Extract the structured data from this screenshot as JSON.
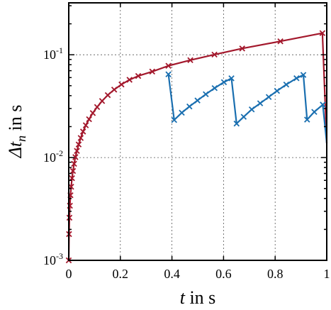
{
  "chart_data": {
    "type": "line",
    "title": "",
    "xlabel": {
      "var": "t",
      "suffix": " in s"
    },
    "ylabel": {
      "var": "Δt",
      "sub": "n",
      "suffix": " in s"
    },
    "xlim": [
      0,
      1
    ],
    "ylim": [
      0.001,
      0.32
    ],
    "yscale": "log",
    "grid": true,
    "x_ticks": [
      {
        "value": 0,
        "label": "0"
      },
      {
        "value": 0.2,
        "label": "0.2"
      },
      {
        "value": 0.4,
        "label": "0.4"
      },
      {
        "value": 0.6,
        "label": "0.6"
      },
      {
        "value": 0.8,
        "label": "0.8"
      },
      {
        "value": 1,
        "label": "1"
      }
    ],
    "y_ticks": [
      {
        "value": 0.001,
        "base": "10",
        "exp": "-3"
      },
      {
        "value": 0.01,
        "base": "10",
        "exp": "-2"
      },
      {
        "value": 0.1,
        "base": "10",
        "exp": "-1"
      }
    ],
    "series": [
      {
        "color": "#a3182c",
        "marker": "x",
        "points": [
          [
            0.0,
            0.001
          ],
          [
            0.0012,
            0.0018
          ],
          [
            0.0027,
            0.0026
          ],
          [
            0.0045,
            0.0034
          ],
          [
            0.0067,
            0.0043
          ],
          [
            0.0094,
            0.0052
          ],
          [
            0.0126,
            0.0063
          ],
          [
            0.0163,
            0.0074
          ],
          [
            0.0207,
            0.0087
          ],
          [
            0.0257,
            0.0101
          ],
          [
            0.0316,
            0.0116
          ],
          [
            0.0384,
            0.0134
          ],
          [
            0.0463,
            0.0155
          ],
          [
            0.0554,
            0.0179
          ],
          [
            0.0661,
            0.0206
          ],
          [
            0.0787,
            0.0236
          ],
          [
            0.0932,
            0.0271
          ],
          [
            0.1099,
            0.031
          ],
          [
            0.1292,
            0.0355
          ],
          [
            0.1512,
            0.0405
          ],
          [
            0.1762,
            0.0458
          ],
          [
            0.2043,
            0.0514
          ],
          [
            0.2355,
            0.0571
          ],
          [
            0.2693,
            0.0622
          ],
          [
            0.3236,
            0.0686
          ],
          [
            0.3863,
            0.0781
          ],
          [
            0.4712,
            0.0886
          ],
          [
            0.5648,
            0.1004
          ],
          [
            0.6723,
            0.1151
          ],
          [
            0.8203,
            0.1352
          ],
          [
            0.9832,
            0.1624
          ],
          [
            1.0,
            0.0138
          ]
        ]
      },
      {
        "color": "#1a6fb0",
        "marker": "x",
        "points": [
          [
            0.3863,
            0.0645
          ],
          [
            0.4087,
            0.0232
          ],
          [
            0.4381,
            0.0273
          ],
          [
            0.4678,
            0.0314
          ],
          [
            0.4989,
            0.0359
          ],
          [
            0.5311,
            0.0413
          ],
          [
            0.5654,
            0.0474
          ],
          [
            0.6015,
            0.0541
          ],
          [
            0.6306,
            0.059
          ],
          [
            0.6505,
            0.0214
          ],
          [
            0.6781,
            0.0249
          ],
          [
            0.7092,
            0.0294
          ],
          [
            0.7419,
            0.0337
          ],
          [
            0.7751,
            0.0388
          ],
          [
            0.8072,
            0.0445
          ],
          [
            0.8431,
            0.0513
          ],
          [
            0.8828,
            0.0591
          ],
          [
            0.9094,
            0.0637
          ],
          [
            0.9238,
            0.0234
          ],
          [
            0.9517,
            0.0278
          ],
          [
            0.9846,
            0.0327
          ],
          [
            1.0,
            0.0138
          ]
        ]
      }
    ]
  }
}
